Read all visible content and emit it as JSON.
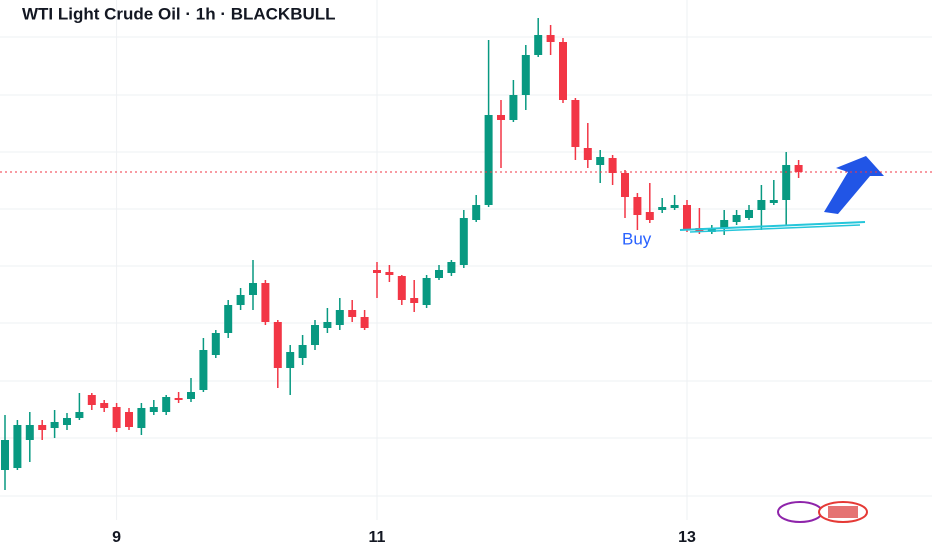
{
  "chart_data": {
    "type": "candlestick",
    "title": "WTI Light Crude Oil · 1h · BLACKBULL",
    "x": [
      null,
      null,
      null,
      null,
      null,
      null,
      null,
      null,
      null,
      "9",
      null,
      null,
      null,
      null,
      null,
      null,
      null,
      null,
      null,
      null,
      null,
      null,
      null,
      null,
      null,
      null,
      null,
      null,
      null,
      null,
      "11",
      null,
      null,
      null,
      null,
      null,
      null,
      null,
      null,
      null,
      null,
      null,
      null,
      null,
      null,
      null,
      null,
      null,
      null,
      null,
      null,
      null,
      null,
      null,
      null,
      "13",
      null,
      null,
      null,
      null,
      null,
      null,
      null,
      null,
      null
    ],
    "open": [
      80,
      82,
      110,
      125,
      122,
      125,
      132,
      155,
      147,
      143,
      138,
      122,
      138,
      138,
      152,
      151,
      160,
      195,
      217,
      245,
      255,
      267,
      228,
      182,
      192,
      205,
      222,
      225,
      240,
      233,
      280,
      278,
      274,
      252,
      245,
      272,
      277,
      285,
      330,
      345,
      435,
      430,
      455,
      495,
      515,
      508,
      450,
      402,
      385,
      392,
      377,
      353,
      338,
      340,
      342,
      345,
      322,
      318,
      322,
      328,
      332,
      340,
      347,
      350,
      385
    ],
    "high": [
      135,
      130,
      138,
      130,
      140,
      137,
      157,
      157,
      150,
      147,
      142,
      147,
      150,
      155,
      158,
      172,
      212,
      220,
      250,
      262,
      290,
      270,
      230,
      205,
      215,
      230,
      242,
      252,
      250,
      240,
      288,
      285,
      275,
      270,
      275,
      285,
      290,
      340,
      355,
      510,
      450,
      470,
      505,
      532,
      525,
      512,
      452,
      427,
      400,
      395,
      380,
      357,
      367,
      352,
      355,
      350,
      342,
      325,
      340,
      340,
      345,
      365,
      370,
      398,
      390
    ],
    "low": [
      60,
      80,
      88,
      110,
      112,
      120,
      130,
      140,
      138,
      118,
      120,
      115,
      135,
      135,
      147,
      148,
      158,
      192,
      212,
      240,
      240,
      225,
      162,
      155,
      185,
      200,
      217,
      220,
      228,
      220,
      252,
      268,
      245,
      238,
      242,
      270,
      274,
      282,
      328,
      343,
      382,
      428,
      440,
      493,
      495,
      447,
      390,
      382,
      367,
      365,
      332,
      320,
      327,
      337,
      340,
      318,
      316,
      316,
      315,
      325,
      330,
      320,
      345,
      325,
      372
    ],
    "close": [
      110,
      125,
      125,
      120,
      128,
      132,
      138,
      145,
      142,
      122,
      123,
      142,
      143,
      153,
      150,
      158,
      200,
      217,
      245,
      255,
      267,
      228,
      182,
      198,
      205,
      225,
      228,
      240,
      233,
      222,
      277,
      275,
      250,
      247,
      272,
      280,
      288,
      332,
      345,
      435,
      430,
      455,
      495,
      515,
      508,
      450,
      403,
      390,
      393,
      377,
      353,
      335,
      330,
      343,
      345,
      320,
      318,
      322,
      330,
      335,
      340,
      350,
      350,
      385,
      378
    ],
    "up_color": "#089981",
    "down_color": "#f23645",
    "ylim": [
      0,
      550
    ],
    "annotation": "Buy"
  }
}
